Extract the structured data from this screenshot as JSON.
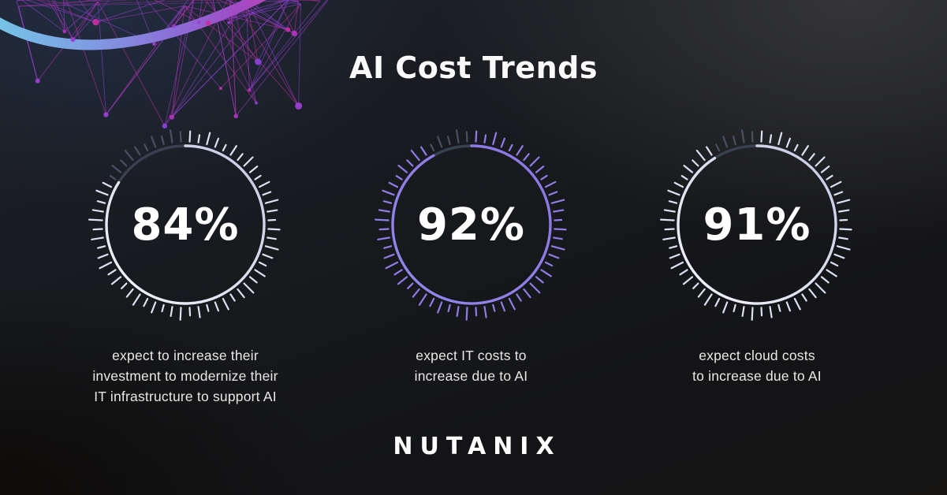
{
  "page": {
    "title": "AI Cost Trends"
  },
  "brand": {
    "logo_text": "NUTANIX"
  },
  "colors": {
    "background_base": "#17191d",
    "background_navy_glow": "#212d42",
    "background_gray_glow": "#3a3a3c",
    "text_primary": "#ffffff",
    "text_caption": "#eae8e6",
    "gauge_dim_ring": "#39404f",
    "gauge_dim_tick": "#495062",
    "accent_purple": "#8f7de6",
    "accent_white_lavender": "#dde0f0",
    "arc_gradient": [
      "#74cbe8",
      "#7f9ce2",
      "#8b6fd8",
      "#a04cc6",
      "#c93eb0"
    ],
    "mesh_palette": [
      "#9b3fd4",
      "#b331bd",
      "#c52fa4",
      "#8742d8"
    ]
  },
  "stats": [
    {
      "value": 84,
      "label": "84%",
      "tick_color": "#dde0f0",
      "ring": {
        "from": "#f4f5fa",
        "to": "#c6c8e6"
      },
      "caption_lines": [
        "expect to increase their",
        "investment to modernize their",
        "IT infrastructure to support AI"
      ]
    },
    {
      "value": 92,
      "label": "92%",
      "tick_color": "#8f7de6",
      "ring": {
        "from": "#9486ea",
        "to": "#8a77e3"
      },
      "caption_lines": [
        "expect IT costs to",
        "increase due to AI"
      ]
    },
    {
      "value": 91,
      "label": "91%",
      "tick_color": "#dde0f0",
      "ring": {
        "from": "#f4f5fa",
        "to": "#c6c8e6"
      },
      "caption_lines": [
        "expect cloud costs",
        "to increase due to AI"
      ]
    }
  ],
  "chart_data": {
    "type": "donut-gauge",
    "title": "AI Cost Trends",
    "range": [
      0,
      100
    ],
    "start_angle_deg": 0,
    "direction": "clockwise",
    "legend_position": "below-each-gauge",
    "series": [
      {
        "name": "expect to increase their investment to modernize their IT infrastructure to support AI",
        "value": 84,
        "unit": "%",
        "color": "#dde0f0"
      },
      {
        "name": "expect IT costs to increase due to AI",
        "value": 92,
        "unit": "%",
        "color": "#8f7de6"
      },
      {
        "name": "expect cloud costs to increase due to AI",
        "value": 91,
        "unit": "%",
        "color": "#dde0f0"
      }
    ]
  }
}
